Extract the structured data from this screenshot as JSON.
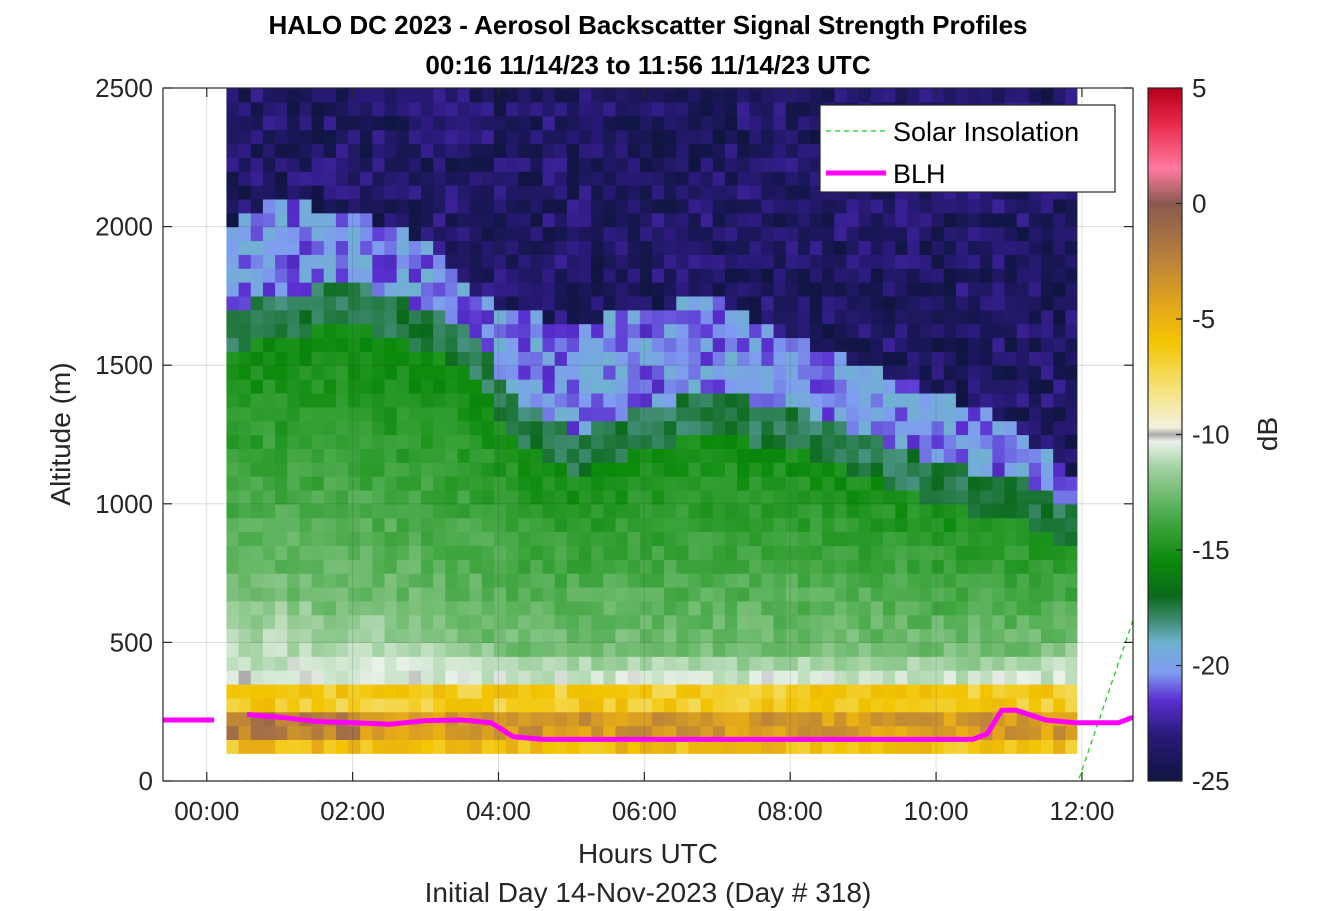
{
  "chart_data": {
    "type": "heatmap",
    "title_line1": "HALO DC 2023 - Aerosol Backscatter Signal Strength Profiles",
    "title_line2": "00:16 11/14/23 to 11:56 11/14/23  UTC",
    "xlabel": "Hours UTC",
    "xlabel2": "Initial Day 14-Nov-2023 (Day # 318)",
    "ylabel": "Altitude (m)",
    "colorbar_label": "dB",
    "xlim_hours": [
      -0.6,
      12.7
    ],
    "ylim": [
      0,
      2500
    ],
    "x_ticks": [
      0,
      2,
      4,
      6,
      8,
      10,
      12
    ],
    "x_tick_labels": [
      "00:00",
      "02:00",
      "04:00",
      "06:00",
      "08:00",
      "10:00",
      "12:00"
    ],
    "y_ticks": [
      0,
      500,
      1000,
      1500,
      2000,
      2500
    ],
    "y_tick_labels": [
      "0",
      "500",
      "1000",
      "1500",
      "2000",
      "2500"
    ],
    "clim": [
      -25,
      5
    ],
    "colorbar_ticks": [
      5,
      0,
      -5,
      -10,
      -15,
      -20,
      -25
    ],
    "colorbar_tick_labels": [
      "5",
      "0",
      "-5",
      "-10",
      "-15",
      "-20",
      "-25"
    ],
    "colormap": [
      {
        "v": -25,
        "c": "#0f1540"
      },
      {
        "v": -23,
        "c": "#2a1a7a"
      },
      {
        "v": -21.5,
        "c": "#5a2fd0"
      },
      {
        "v": -20.3,
        "c": "#7f9cf0"
      },
      {
        "v": -19,
        "c": "#6fb2d0"
      },
      {
        "v": -18,
        "c": "#3e8a6e"
      },
      {
        "v": -17,
        "c": "#0a6a1a"
      },
      {
        "v": -15.5,
        "c": "#0b8a0b"
      },
      {
        "v": -13.5,
        "c": "#4aaa4a"
      },
      {
        "v": -11.5,
        "c": "#9fd09f"
      },
      {
        "v": -10.3,
        "c": "#eaf2ea"
      },
      {
        "v": -10,
        "c": "#a8a8a8"
      },
      {
        "v": -9.7,
        "c": "#f3f1de"
      },
      {
        "v": -8,
        "c": "#f5e27a"
      },
      {
        "v": -6,
        "c": "#f2c400"
      },
      {
        "v": -4.5,
        "c": "#e5a81a"
      },
      {
        "v": -2,
        "c": "#b07a40"
      },
      {
        "v": 0,
        "c": "#8a5a50"
      },
      {
        "v": 1.5,
        "c": "#ff7aa0"
      },
      {
        "v": 3.5,
        "c": "#e8284a"
      },
      {
        "v": 5,
        "c": "#b5001a"
      }
    ],
    "data_time_range_hours": [
      0.27,
      11.93
    ],
    "time_step_hours": 0.1667,
    "altitude_range_m": [
      100,
      2500
    ],
    "altitude_step_m": 50,
    "profile_zones": [
      {
        "t": 0.3,
        "top_green": 1700,
        "blue_top": 2000,
        "lower_green": 650
      },
      {
        "t": 1.0,
        "top_green": 1750,
        "blue_top": 2100,
        "lower_green": 650
      },
      {
        "t": 2.0,
        "top_green": 1800,
        "blue_top": 2050,
        "lower_green": 600
      },
      {
        "t": 3.0,
        "top_green": 1700,
        "blue_top": 1950,
        "lower_green": 550
      },
      {
        "t": 3.6,
        "top_green": 1650,
        "blue_top": 1750,
        "lower_green": 500
      },
      {
        "t": 4.2,
        "top_green": 1400,
        "blue_top": 1700,
        "lower_green": 450
      },
      {
        "t": 5.0,
        "top_green": 1250,
        "blue_top": 1650,
        "lower_green": 450
      },
      {
        "t": 6.0,
        "top_green": 1350,
        "blue_top": 1700,
        "lower_green": 450
      },
      {
        "t": 7.0,
        "top_green": 1400,
        "blue_top": 1750,
        "lower_green": 450
      },
      {
        "t": 8.0,
        "top_green": 1350,
        "blue_top": 1600,
        "lower_green": 450
      },
      {
        "t": 9.0,
        "top_green": 1250,
        "blue_top": 1500,
        "lower_green": 450
      },
      {
        "t": 10.0,
        "top_green": 1150,
        "blue_top": 1400,
        "lower_green": 450
      },
      {
        "t": 11.0,
        "top_green": 1100,
        "blue_top": 1300,
        "lower_green": 450
      },
      {
        "t": 11.9,
        "top_green": 1000,
        "blue_top": 1100,
        "lower_green": 500
      }
    ],
    "series": [
      {
        "name": "Solar Insolation",
        "color": "#22cc22",
        "style": "dashed",
        "x": [
          -0.6,
          11.95,
          12.7
        ],
        "y": [
          0,
          0,
          580
        ]
      },
      {
        "name": "BLH",
        "color": "#ff00ff",
        "style": "solid",
        "segments": [
          {
            "x": [
              -0.6,
              0.1
            ],
            "y": [
              220,
              220
            ]
          },
          {
            "x": [
              0.55,
              1.0,
              1.5,
              2.0,
              2.5,
              3.0,
              3.5,
              3.9,
              4.2,
              4.6,
              5.0,
              6.0,
              7.0,
              8.0,
              9.0,
              10.0,
              10.5,
              10.7,
              10.9,
              11.1,
              11.5,
              11.9,
              12.5,
              12.7
            ],
            "y": [
              240,
              230,
              215,
              210,
              205,
              218,
              220,
              210,
              160,
              150,
              150,
              150,
              150,
              150,
              150,
              150,
              150,
              170,
              255,
              255,
              220,
              210,
              210,
              230
            ]
          }
        ]
      }
    ],
    "legend": {
      "position": "top-right",
      "entries": [
        "Solar Insolation",
        "BLH"
      ]
    },
    "grid": true
  }
}
